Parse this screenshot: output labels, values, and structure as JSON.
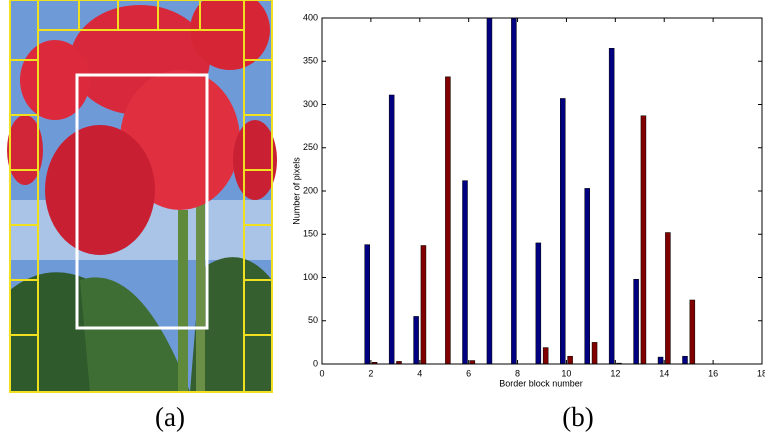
{
  "chart_data": {
    "type": "bar",
    "xlabel": "Border block number",
    "ylabel": "Number of pixels",
    "x": [
      2,
      3,
      4,
      5,
      6,
      7,
      8,
      9,
      10,
      11,
      12,
      13,
      14,
      15
    ],
    "series": [
      {
        "color": "#000080",
        "values": [
          138,
          311,
          55,
          0,
          212,
          400,
          400,
          140,
          307,
          203,
          365,
          98,
          8,
          9
        ]
      },
      {
        "color": "#800000",
        "values": [
          2,
          3,
          137,
          332,
          4,
          0,
          0,
          19,
          9,
          25,
          1,
          287,
          152,
          74
        ]
      }
    ],
    "xlim": [
      0,
      18
    ],
    "xticks": [
      0,
      2,
      4,
      6,
      8,
      10,
      12,
      14,
      16,
      18
    ],
    "ylim": [
      0,
      400
    ],
    "yticks": [
      0,
      50,
      100,
      150,
      200,
      250,
      300,
      350,
      400
    ],
    "grid": false
  },
  "captions": {
    "left": "(a)",
    "right": "(b)"
  }
}
